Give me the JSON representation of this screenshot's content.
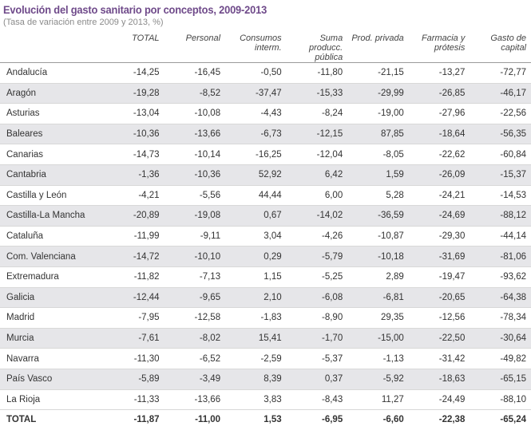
{
  "title": "Evolución del gasto sanitario por conceptos, 2009-2013",
  "subtitle": "(Tasa de variación entre 2009 y 2013, %)",
  "headers": [
    "",
    "TOTAL",
    "Personal",
    "Consumos interm.",
    "Suma producc. pública",
    "Prod. privada",
    "Farmacia y prótesis",
    "Gasto de capital"
  ],
  "rows": [
    [
      "Andalucía",
      "-14,25",
      "-16,45",
      "-0,50",
      "-11,80",
      "-21,15",
      "-13,27",
      "-72,77"
    ],
    [
      "Aragón",
      "-19,28",
      "-8,52",
      "-37,47",
      "-15,33",
      "-29,99",
      "-26,85",
      "-46,17"
    ],
    [
      "Asturias",
      "-13,04",
      "-10,08",
      "-4,43",
      "-8,24",
      "-19,00",
      "-27,96",
      "-22,56"
    ],
    [
      "Baleares",
      "-10,36",
      "-13,66",
      "-6,73",
      "-12,15",
      "87,85",
      "-18,64",
      "-56,35"
    ],
    [
      "Canarias",
      "-14,73",
      "-10,14",
      "-16,25",
      "-12,04",
      "-8,05",
      "-22,62",
      "-60,84"
    ],
    [
      "Cantabria",
      "-1,36",
      "-10,36",
      "52,92",
      "6,42",
      "1,59",
      "-26,09",
      "-15,37"
    ],
    [
      "Castilla y León",
      "-4,21",
      "-5,56",
      "44,44",
      "6,00",
      "5,28",
      "-24,21",
      "-14,53"
    ],
    [
      "Castilla-La Mancha",
      "-20,89",
      "-19,08",
      "0,67",
      "-14,02",
      "-36,59",
      "-24,69",
      "-88,12"
    ],
    [
      "Cataluña",
      "-11,99",
      "-9,11",
      "3,04",
      "-4,26",
      "-10,87",
      "-29,30",
      "-44,14"
    ],
    [
      "Com. Valenciana",
      "-14,72",
      "-10,10",
      "0,29",
      "-5,79",
      "-10,18",
      "-31,69",
      "-81,06"
    ],
    [
      "Extremadura",
      "-11,82",
      "-7,13",
      "1,15",
      "-5,25",
      "2,89",
      "-19,47",
      "-93,62"
    ],
    [
      "Galicia",
      "-12,44",
      "-9,65",
      "2,10",
      "-6,08",
      "-6,81",
      "-20,65",
      "-64,38"
    ],
    [
      "Madrid",
      "-7,95",
      "-12,58",
      "-1,83",
      "-8,90",
      "29,35",
      "-12,56",
      "-78,34"
    ],
    [
      "Murcia",
      "-7,61",
      "-8,02",
      "15,41",
      "-1,70",
      "-15,00",
      "-22,50",
      "-30,64"
    ],
    [
      "Navarra",
      "-11,30",
      "-6,52",
      "-2,59",
      "-5,37",
      "-1,13",
      "-31,42",
      "-49,82"
    ],
    [
      "País Vasco",
      "-5,89",
      "-3,49",
      "8,39",
      "0,37",
      "-5,92",
      "-18,63",
      "-65,15"
    ],
    [
      "La Rioja",
      "-11,33",
      "-13,66",
      "3,83",
      "-8,43",
      "11,27",
      "-24,49",
      "-88,10"
    ]
  ],
  "total": [
    "TOTAL",
    "-11,87",
    "-11,00",
    "1,53",
    "-6,95",
    "-6,60",
    "-22,38",
    "-65,24"
  ]
}
